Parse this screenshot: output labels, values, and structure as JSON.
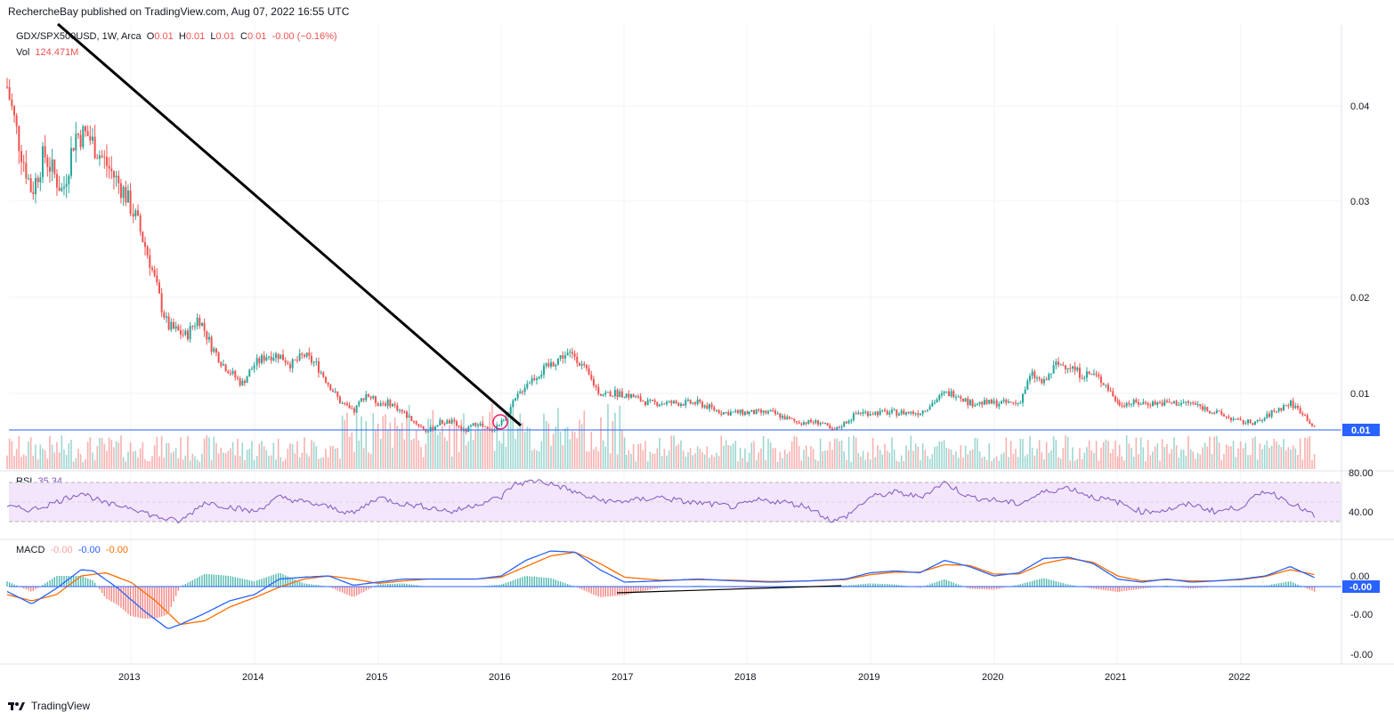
{
  "header": {
    "publisher_line": "RechercheBay published on TradingView.com, Aug 07, 2022 16:55 UTC"
  },
  "legend": {
    "symbol": "GDX/SPX500USD, 1W, Arca",
    "o_label": "O",
    "o_value": "0.01",
    "h_label": "H",
    "h_value": "0.01",
    "l_label": "L",
    "l_value": "0.01",
    "c_label": "C",
    "c_value": "0.01",
    "change": "-0.00 (−0.16%)",
    "vol_label": "Vol",
    "vol_value": "124.471M",
    "rsi_label": "RSI",
    "rsi_value": "35.34",
    "macd_label": "MACD",
    "macd_hist": "-0.00",
    "macd_line": "-0.00",
    "macd_signal": "-0.00"
  },
  "footer": {
    "brand": "TradingView"
  },
  "colors": {
    "up": "#26a69a",
    "down": "#ef5350",
    "rsi_line": "#7e57c2",
    "rsi_band": "#f3e5fb",
    "macd_line": "#2962ff",
    "signal_line": "#ff6d00",
    "price_line": "#2962ff"
  },
  "chart_data": [
    {
      "type": "candlestick",
      "title": "GDX/SPX500USD, 1W, Arca",
      "x_ticks": [
        "2013",
        "2014",
        "2015",
        "2016",
        "2017",
        "2018",
        "2019",
        "2020",
        "2021",
        "2022"
      ],
      "y_ticks": [
        "0.04",
        "0.03",
        "0.02",
        "0.01"
      ],
      "y_tick_values": [
        0.04,
        0.03,
        0.02,
        0.01
      ],
      "ylim": [
        0.004,
        0.045
      ],
      "last_price_label": "0.01",
      "last_price": 0.0063,
      "series": [
        {
          "name": "close",
          "x": [
            2012.0,
            2012.1,
            2012.2,
            2012.3,
            2012.45,
            2012.55,
            2012.65,
            2012.75,
            2012.85,
            2012.95,
            2013.05,
            2013.15,
            2013.25,
            2013.3,
            2013.45,
            2013.55,
            2013.65,
            2013.75,
            2013.9,
            2014.0,
            2014.1,
            2014.2,
            2014.3,
            2014.4,
            2014.5,
            2014.6,
            2014.7,
            2014.8,
            2014.9,
            2015.0,
            2015.1,
            2015.2,
            2015.3,
            2015.4,
            2015.5,
            2015.6,
            2015.7,
            2015.8,
            2015.9,
            2016.0,
            2016.1,
            2016.2,
            2016.3,
            2016.4,
            2016.5,
            2016.6,
            2016.7,
            2016.8,
            2016.9,
            2017.0,
            2017.2,
            2017.4,
            2017.6,
            2017.8,
            2018.0,
            2018.2,
            2018.4,
            2018.6,
            2018.7,
            2018.8,
            2018.9,
            2019.0,
            2019.2,
            2019.4,
            2019.6,
            2019.7,
            2019.8,
            2019.9,
            2020.0,
            2020.1,
            2020.2,
            2020.3,
            2020.4,
            2020.5,
            2020.6,
            2020.7,
            2020.8,
            2020.9,
            2021.0,
            2021.2,
            2021.4,
            2021.6,
            2021.8,
            2022.0,
            2022.15,
            2022.25,
            2022.4,
            2022.5,
            2022.6
          ],
          "values": [
            0.042,
            0.036,
            0.031,
            0.035,
            0.031,
            0.037,
            0.037,
            0.035,
            0.033,
            0.031,
            0.028,
            0.024,
            0.019,
            0.017,
            0.016,
            0.018,
            0.015,
            0.013,
            0.011,
            0.013,
            0.014,
            0.014,
            0.013,
            0.014,
            0.013,
            0.011,
            0.009,
            0.008,
            0.01,
            0.009,
            0.009,
            0.008,
            0.007,
            0.006,
            0.007,
            0.007,
            0.006,
            0.007,
            0.006,
            0.007,
            0.009,
            0.011,
            0.012,
            0.013,
            0.014,
            0.014,
            0.012,
            0.01,
            0.01,
            0.01,
            0.009,
            0.009,
            0.009,
            0.008,
            0.008,
            0.008,
            0.007,
            0.007,
            0.006,
            0.007,
            0.008,
            0.008,
            0.008,
            0.008,
            0.01,
            0.01,
            0.009,
            0.009,
            0.009,
            0.009,
            0.009,
            0.012,
            0.011,
            0.013,
            0.013,
            0.012,
            0.012,
            0.011,
            0.009,
            0.009,
            0.009,
            0.009,
            0.008,
            0.007,
            0.007,
            0.008,
            0.009,
            0.008,
            0.0063
          ]
        }
      ]
    },
    {
      "type": "bar",
      "title": "Vol",
      "values_note": "weekly volume (relative)",
      "series": [
        {
          "name": "Vol",
          "values": []
        }
      ]
    },
    {
      "type": "line",
      "title": "RSI",
      "y_ticks": [
        "80.00",
        "40.00"
      ],
      "y_tick_values": [
        80,
        40
      ],
      "ylim": [
        20,
        85
      ],
      "bands": [
        70,
        30
      ],
      "series": [
        {
          "name": "RSI",
          "x": [
            2012.0,
            2012.2,
            2012.4,
            2012.6,
            2012.8,
            2013.0,
            2013.2,
            2013.4,
            2013.6,
            2013.8,
            2014.0,
            2014.2,
            2014.4,
            2014.6,
            2014.8,
            2015.0,
            2015.2,
            2015.4,
            2015.6,
            2015.8,
            2016.0,
            2016.1,
            2016.3,
            2016.5,
            2016.7,
            2016.9,
            2017.1,
            2017.3,
            2017.5,
            2017.7,
            2017.9,
            2018.1,
            2018.3,
            2018.5,
            2018.7,
            2018.8,
            2019.0,
            2019.2,
            2019.4,
            2019.6,
            2019.8,
            2020.0,
            2020.2,
            2020.4,
            2020.6,
            2020.8,
            2021.0,
            2021.2,
            2021.4,
            2021.6,
            2021.8,
            2022.0,
            2022.2,
            2022.4,
            2022.6
          ],
          "values": [
            45,
            42,
            50,
            60,
            48,
            45,
            35,
            30,
            50,
            45,
            40,
            55,
            50,
            45,
            38,
            55,
            48,
            45,
            40,
            48,
            55,
            68,
            72,
            65,
            55,
            50,
            52,
            55,
            50,
            48,
            45,
            52,
            50,
            45,
            30,
            35,
            55,
            60,
            55,
            70,
            55,
            52,
            48,
            60,
            65,
            55,
            50,
            40,
            42,
            48,
            40,
            45,
            62,
            50,
            35.34
          ]
        }
      ]
    },
    {
      "type": "line",
      "title": "MACD",
      "y_ticks": [
        "0.00",
        "-0.00",
        "-0.00"
      ],
      "last_value_label": "-0.00",
      "ylim": [
        -1.0,
        0.55
      ],
      "series": [
        {
          "name": "MACD",
          "x": [
            2012.0,
            2012.2,
            2012.4,
            2012.6,
            2012.7,
            2012.9,
            2013.1,
            2013.3,
            2013.4,
            2013.6,
            2013.8,
            2014.0,
            2014.2,
            2014.4,
            2014.6,
            2014.8,
            2015.0,
            2015.2,
            2015.4,
            2015.6,
            2015.8,
            2016.0,
            2016.2,
            2016.4,
            2016.6,
            2016.8,
            2017.0,
            2017.3,
            2017.6,
            2017.9,
            2018.2,
            2018.5,
            2018.8,
            2019.0,
            2019.2,
            2019.4,
            2019.6,
            2019.8,
            2020.0,
            2020.2,
            2020.4,
            2020.6,
            2020.8,
            2021.0,
            2021.2,
            2021.4,
            2021.6,
            2021.8,
            2022.0,
            2022.2,
            2022.4,
            2022.6
          ],
          "values": [
            -0.25,
            -0.45,
            -0.2,
            0.1,
            0.08,
            -0.2,
            -0.55,
            -0.85,
            -0.78,
            -0.6,
            -0.4,
            -0.3,
            -0.05,
            -0.02,
            0.0,
            -0.15,
            -0.1,
            -0.05,
            -0.05,
            -0.05,
            -0.05,
            0.0,
            0.25,
            0.4,
            0.38,
            0.1,
            -0.1,
            -0.08,
            -0.05,
            -0.08,
            -0.1,
            -0.08,
            -0.05,
            0.05,
            0.08,
            0.05,
            0.25,
            0.15,
            0.0,
            0.05,
            0.28,
            0.3,
            0.2,
            -0.05,
            -0.1,
            -0.05,
            -0.1,
            -0.08,
            -0.05,
            0.0,
            0.15,
            -0.03
          ]
        },
        {
          "name": "Signal",
          "x": [
            2012.0,
            2012.2,
            2012.4,
            2012.6,
            2012.8,
            2013.0,
            2013.2,
            2013.4,
            2013.6,
            2013.8,
            2014.0,
            2014.2,
            2014.4,
            2014.6,
            2014.8,
            2015.0,
            2015.2,
            2015.4,
            2015.6,
            2015.8,
            2016.0,
            2016.2,
            2016.4,
            2016.6,
            2016.8,
            2017.0,
            2017.3,
            2017.6,
            2017.9,
            2018.2,
            2018.5,
            2018.8,
            2019.0,
            2019.2,
            2019.4,
            2019.6,
            2019.8,
            2020.0,
            2020.2,
            2020.4,
            2020.6,
            2020.8,
            2021.0,
            2021.2,
            2021.4,
            2021.6,
            2021.8,
            2022.0,
            2022.2,
            2022.4,
            2022.6
          ],
          "values": [
            -0.3,
            -0.4,
            -0.3,
            0.0,
            0.05,
            -0.1,
            -0.4,
            -0.78,
            -0.72,
            -0.5,
            -0.35,
            -0.18,
            -0.05,
            0.0,
            -0.05,
            -0.12,
            -0.08,
            -0.05,
            -0.05,
            -0.05,
            -0.02,
            0.15,
            0.32,
            0.38,
            0.2,
            -0.02,
            -0.07,
            -0.06,
            -0.07,
            -0.09,
            -0.08,
            -0.06,
            0.02,
            0.06,
            0.06,
            0.18,
            0.17,
            0.03,
            0.03,
            0.2,
            0.28,
            0.22,
            0.0,
            -0.08,
            -0.06,
            -0.08,
            -0.08,
            -0.06,
            -0.01,
            0.1,
            0.02
          ]
        }
      ]
    }
  ]
}
